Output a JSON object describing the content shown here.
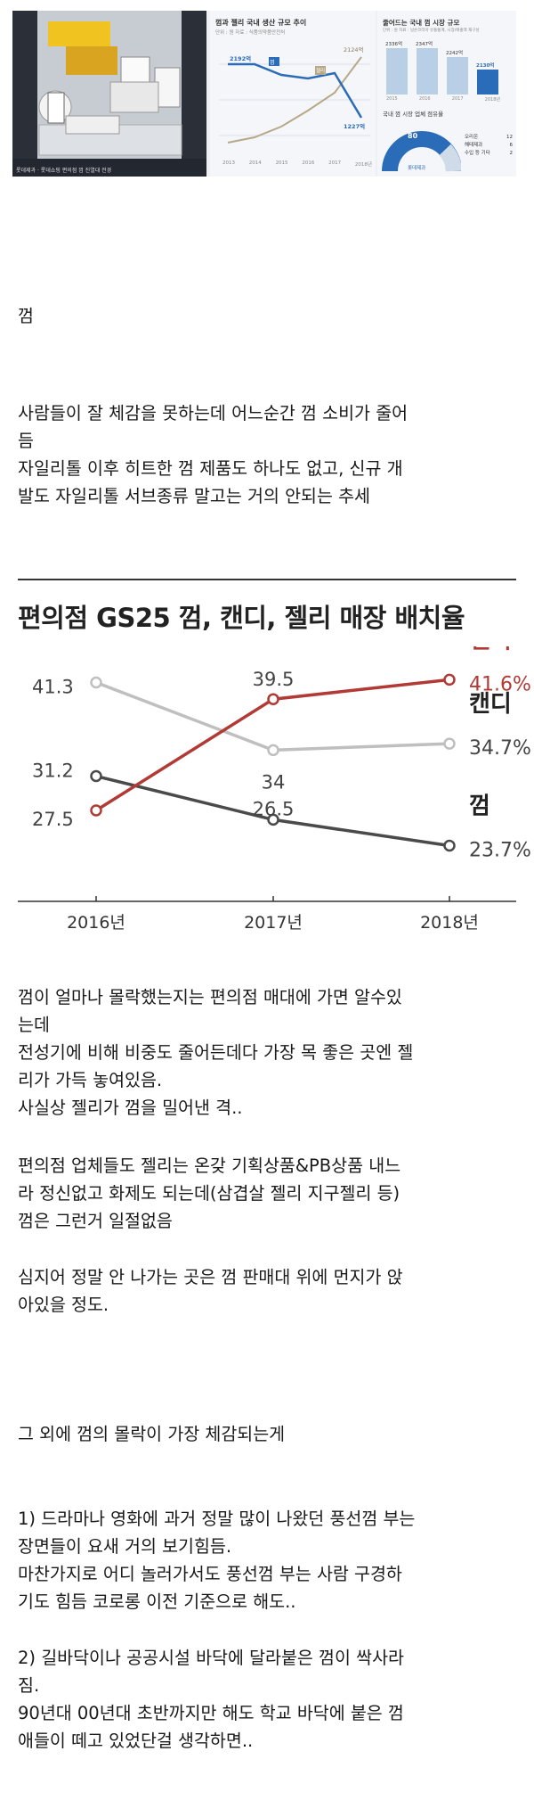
{
  "top_image": {
    "info1_title": "껌과 젤리 국내 생산 규모 추이",
    "info1_unit": "단위 : 원  자료 : 식품의약품안전처",
    "info1_labels": [
      "2192억",
      "껌",
      "젤리",
      "2124억",
      "1227억"
    ],
    "info1_years": [
      "2013",
      "2014",
      "2015",
      "2016",
      "2017",
      "2018년"
    ],
    "info2_title": "줄어드는 국내 껌 시장 규모",
    "info2_unit": "단위 : 원  자료 : 닐슨코리아 유통통계, 시장/매출액 재구성",
    "info2_bars": [
      "2336억",
      "2347억",
      "2242억",
      "2130억"
    ],
    "info2_years": [
      "2015",
      "2016",
      "2017",
      "2018년"
    ],
    "info2_pie_title": "국내 껌 시장 업체 점유율",
    "info2_pie_value": "80",
    "info2_pie_center": "롯데제과",
    "info2_legend": [
      {
        "name": "오리온",
        "value": "12"
      },
      {
        "name": "해태제과",
        "value": "6"
      },
      {
        "name": "수입 등 기타",
        "value": "2"
      }
    ],
    "caption": "롯데제과 · 롯데쇼핑 편의점 껌 진열대 전경"
  },
  "paragraphs": {
    "p1": "껌",
    "p2_l1": "사람들이 잘 체감을 못하는데 어느순간 껌 소비가 줄어",
    "p2_l2": "듬",
    "p2_l3": "자일리톨 이후 히트한 껌 제품도 하나도 없고, 신규 개",
    "p2_l4": "발도 자일리톨 서브종류 말고는 거의 안되는 추세",
    "p3_l1": "껌이 얼마나 몰락했는지는 편의점 매대에 가면 알수있",
    "p3_l2": "는데",
    "p3_l3": "전성기에 비해 비중도 줄어든데다 가장 목 좋은 곳엔 젤",
    "p3_l4": "리가 가득 놓여있음.",
    "p3_l5": "사실상 젤리가 껌을 밀어낸 격..",
    "p4_l1": "편의점 업체들도 젤리는 온갖 기획상품&PB상품 내느",
    "p4_l2": "라 정신없고 화제도 되는데(삼겹살 젤리 지구젤리 등)",
    "p4_l3": "껌은 그런거 일절없음",
    "p5_l1": "심지어 정말 안 나가는 곳은 껌 판매대 위에 먼지가 앉",
    "p5_l2": "아있을 정도.",
    "p6": "그 외에 껌의 몰락이 가장 체감되는게",
    "p7_l1": "1) 드라마나 영화에 과거 정말 많이 나왔던 풍선껌 부는",
    "p7_l2": "장면들이 요새 거의 보기힘듬.",
    "p7_l3": "마찬가지로 어디 놀러가서도 풍선껌 부는 사람 구경하",
    "p7_l4": "기도 힘듬 코로롱 이전 기준으로 해도..",
    "p8_l1": "2) 길바닥이나 공공시설 바닥에 달라붙은 껌이 싹사라",
    "p8_l2": "짐.",
    "p8_l3": "90년대 00년대 초반까지만 해도 학교 바닥에 붙은 껌",
    "p8_l4": "애들이 떼고 있었단걸 생각하면.."
  },
  "chart_data": {
    "type": "line",
    "title": "편의점 GS25 껌, 캔디, 젤리 매장 배치율",
    "categories": [
      "2016년",
      "2017년",
      "2018년"
    ],
    "ylim": [
      20,
      45
    ],
    "grid": false,
    "series": [
      {
        "name": "젤리",
        "values": [
          27.5,
          39.5,
          41.6
        ],
        "labels": [
          "27.5",
          "39.5",
          "41.6%"
        ],
        "color": "#b23a35"
      },
      {
        "name": "캔디",
        "values": [
          41.3,
          34,
          34.7
        ],
        "labels": [
          "41.3",
          "34",
          "34.7%"
        ],
        "color": "#bfbfbf"
      },
      {
        "name": "껌",
        "values": [
          31.2,
          26.5,
          23.7
        ],
        "labels": [
          "31.2",
          "26.5",
          "23.7%"
        ],
        "color": "#4a4a4a"
      }
    ]
  },
  "colors": {
    "jelly": "#b23a35",
    "candy": "#bfbfbf",
    "gum": "#4a4a4a",
    "accent_blue": "#2b6cb8"
  }
}
